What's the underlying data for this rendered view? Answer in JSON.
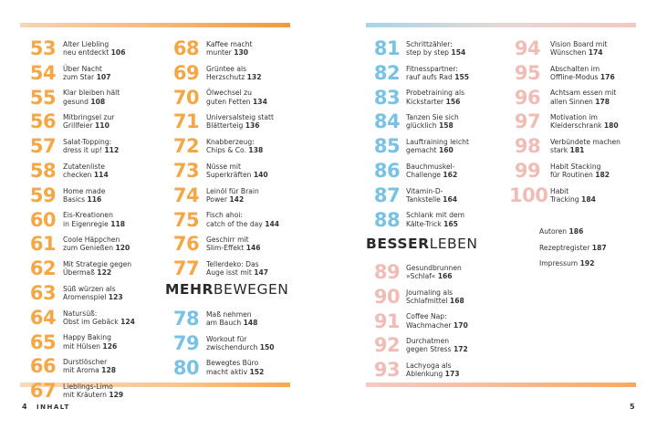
{
  "col1": [
    {
      "n": "53",
      "t": "Alter Liebling\nneu entdeckt",
      "p": "106"
    },
    {
      "n": "54",
      "t": "Über Nacht\nzum Star",
      "p": "107"
    },
    {
      "n": "55",
      "t": "Klar bleiben hält\ngesund",
      "p": "108"
    },
    {
      "n": "56",
      "t": "Mitbringsel zur\nGrillfeier",
      "p": "110"
    },
    {
      "n": "57",
      "t": "Salat-Topping:\ndress it up!",
      "p": "112"
    },
    {
      "n": "58",
      "t": "Zutatenliste\nchecken",
      "p": "114"
    },
    {
      "n": "59",
      "t": "Home made\nBasics",
      "p": "116"
    },
    {
      "n": "60",
      "t": "Eis-Kreationen\nin Eigenregie",
      "p": "118"
    },
    {
      "n": "61",
      "t": "Coole Häppchen\nzum Genießen",
      "p": "120"
    },
    {
      "n": "62",
      "t": "Mit Strategie gegen\nÜbermaß",
      "p": "122"
    },
    {
      "n": "63",
      "t": "Süß würzen als\nAromenspiel",
      "p": "123"
    },
    {
      "n": "64",
      "t": "Natursüß:\nObst im Gebäck",
      "p": "124"
    },
    {
      "n": "65",
      "t": "Happy Baking\nmit Hülsen",
      "p": "126"
    },
    {
      "n": "66",
      "t": "Durstlöscher\nmit Aroma",
      "p": "128"
    },
    {
      "n": "67",
      "t": "Lieblings-Limo\nmit Kräutern",
      "p": "129"
    }
  ],
  "col2": [
    {
      "n": "68",
      "t": "Kaffee macht\nmunter",
      "p": "130"
    },
    {
      "n": "69",
      "t": "Grüntee als\nHerzschutz",
      "p": "132"
    },
    {
      "n": "70",
      "t": "Ölwechsel zu\nguten Fetten",
      "p": "134"
    },
    {
      "n": "71",
      "t": "Universalsteig statt\nBlätterteig",
      "p": "136"
    },
    {
      "n": "72",
      "t": "Knabberzeug:\nChips & Co.",
      "p": "138"
    },
    {
      "n": "73",
      "t": "Nüsse mit\nSuperkräften",
      "p": "140"
    },
    {
      "n": "74",
      "t": "Leinöl für Brain\nPower",
      "p": "142"
    },
    {
      "n": "75",
      "t": "Fisch ahoi:\ncatch of the day",
      "p": "144"
    },
    {
      "n": "76",
      "t": "Geschirr mit\nSlim-Effekt",
      "p": "146"
    },
    {
      "n": "77",
      "t": "Tellerdeko: Das\nAuge isst mit",
      "p": "147"
    }
  ],
  "col2b": [
    {
      "n": "78",
      "t": "Maß nehmen\nam Bauch",
      "p": "148"
    },
    {
      "n": "79",
      "t": "Workout für\nzwischendurch",
      "p": "150"
    },
    {
      "n": "80",
      "t": "Bewegtes Büro\nmacht aktiv",
      "p": "152"
    }
  ],
  "col3": [
    {
      "n": "81",
      "t": "Schrittzähler:\nstep by step",
      "p": "154"
    },
    {
      "n": "82",
      "t": "Fitnesspartner:\nrauf aufs Rad",
      "p": "155"
    },
    {
      "n": "83",
      "t": "Probetraining als\nKickstarter",
      "p": "156"
    },
    {
      "n": "84",
      "t": "Tanzen Sie sich\nglücklich",
      "p": "158"
    },
    {
      "n": "85",
      "t": "Lauftraining leicht\ngemacht",
      "p": "160"
    },
    {
      "n": "86",
      "t": "Bauchmuskel-\nChallenge",
      "p": "162"
    },
    {
      "n": "87",
      "t": "Vitamin-D-\nTankstelle",
      "p": "164"
    },
    {
      "n": "88",
      "t": "Schlank mit dem\nKälte-Trick",
      "p": "165"
    }
  ],
  "col3b": [
    {
      "n": "89",
      "t": "Gesundbrunnen\n»Schlaf«",
      "p": "166"
    },
    {
      "n": "90",
      "t": "Journaling als\nSchlafmittel",
      "p": "168"
    },
    {
      "n": "91",
      "t": "Coffee Nap:\nWachmacher",
      "p": "170"
    },
    {
      "n": "92",
      "t": "Durchatmen\ngegen Stress",
      "p": "172"
    },
    {
      "n": "93",
      "t": "Lachyoga als\nAblenkung",
      "p": "173"
    }
  ],
  "col4": [
    {
      "n": "94",
      "t": "Vision Board mit\nWünschen",
      "p": "174"
    },
    {
      "n": "95",
      "t": "Abschalten im\nOffline-Modus",
      "p": "176"
    },
    {
      "n": "96",
      "t": "Achtsam essen mit\nallen Sinnen",
      "p": "178"
    },
    {
      "n": "97",
      "t": "Motivation im\nKleiderschrank",
      "p": "180"
    },
    {
      "n": "98",
      "t": "Verbündete machen\nstark",
      "p": "181"
    },
    {
      "n": "99",
      "t": "Habit Stacking\nfür Routinen",
      "p": "182"
    },
    {
      "n": "100",
      "t": "Habit\nTracking",
      "p": "184"
    }
  ],
  "extras": [
    {
      "t": "Autoren",
      "p": "186"
    },
    {
      "t": "Rezeptregister",
      "p": "187"
    },
    {
      "t": "Impressum",
      "p": "192"
    }
  ],
  "sections": {
    "mehr_bold": "MEHR",
    "mehr_light": "BEWEGEN",
    "besser_bold": "BESSER",
    "besser_light": "LEBEN"
  },
  "footer": {
    "left_page": "4",
    "left_label": "INHALT",
    "right_page": "5"
  },
  "colors": {
    "orange": "#f4a744",
    "blue": "#78c2e4",
    "pink": "#f1bcb6"
  }
}
